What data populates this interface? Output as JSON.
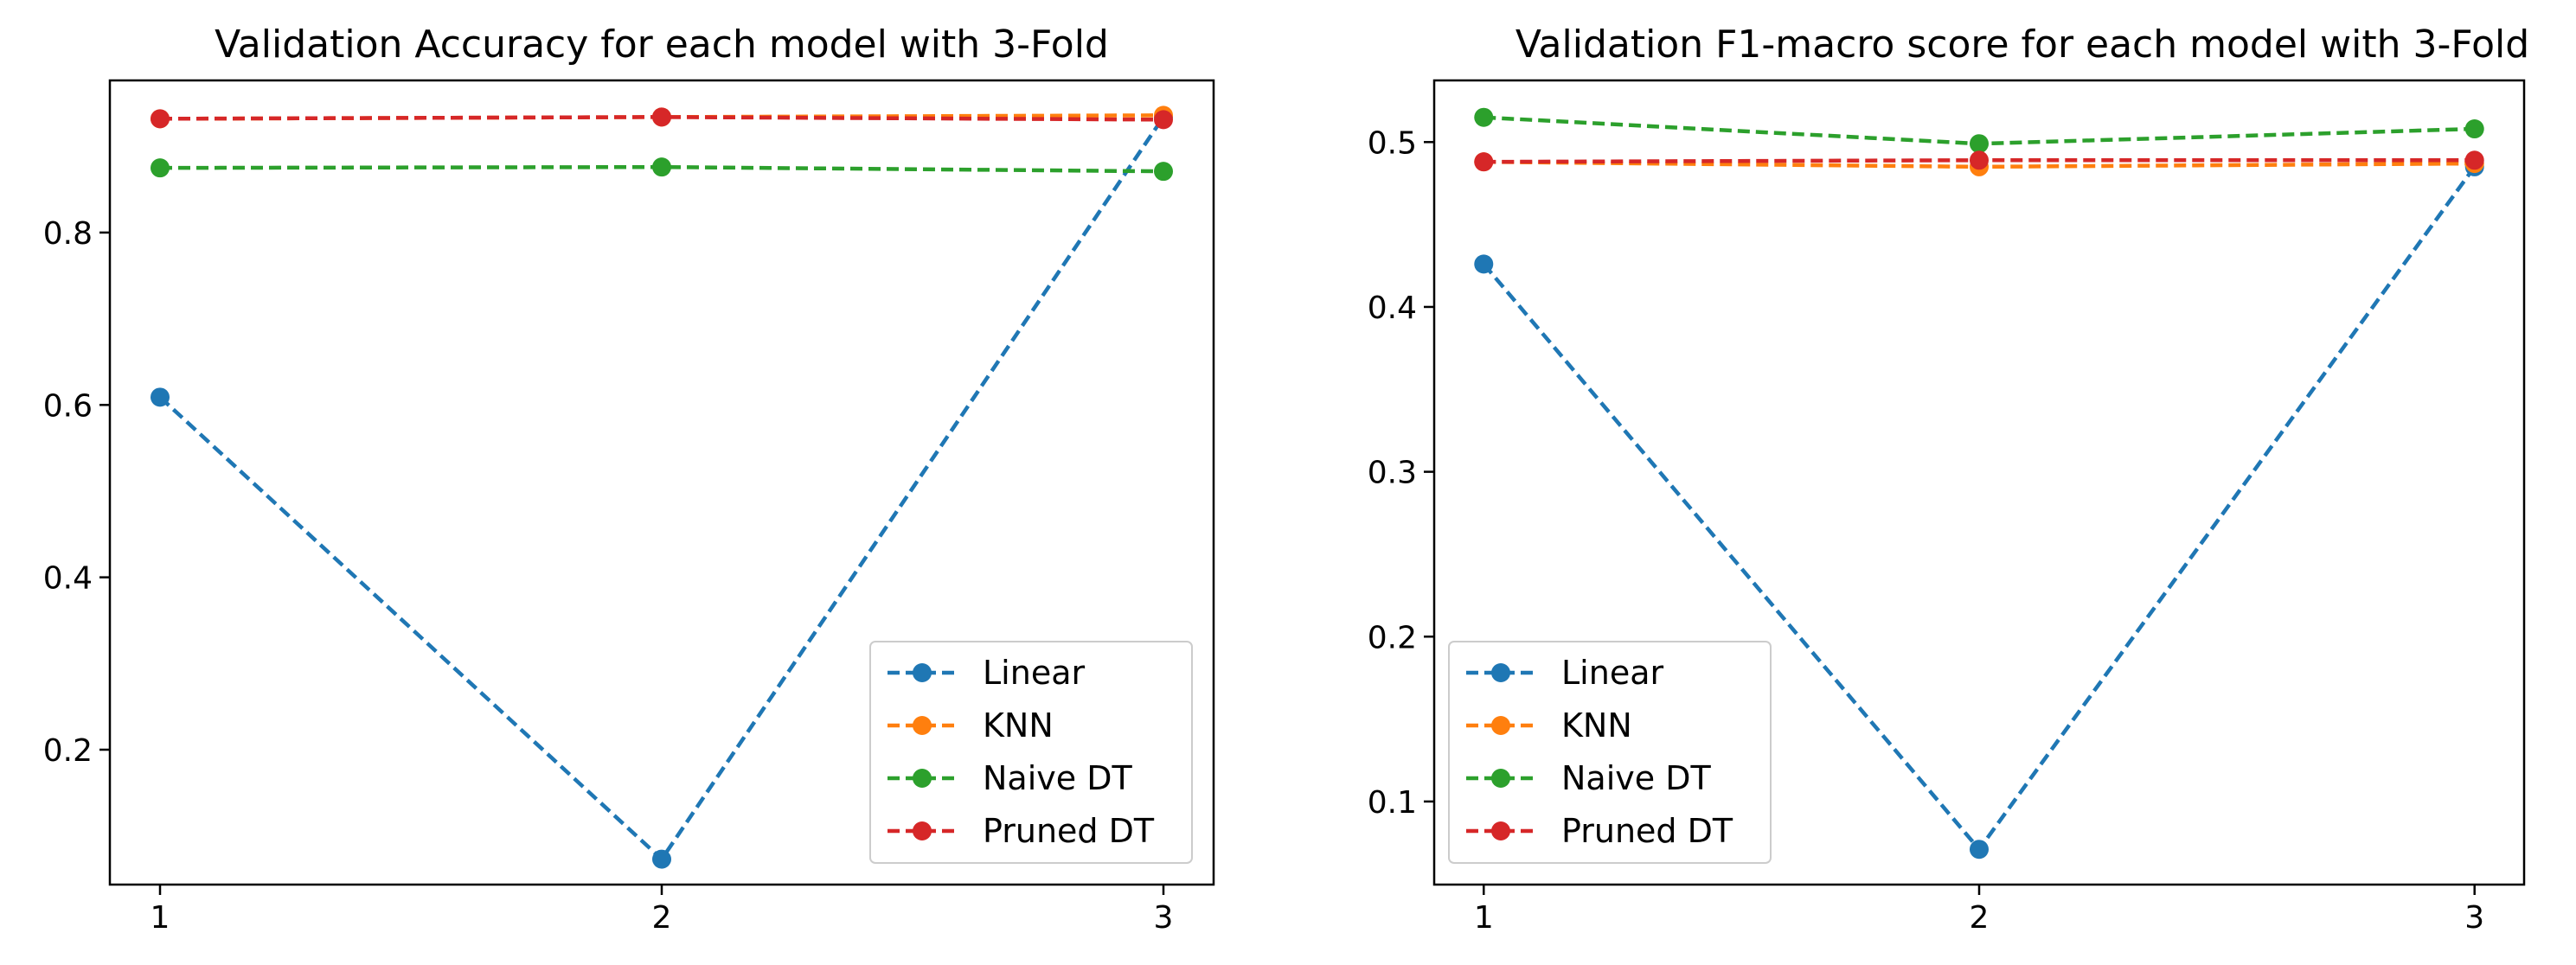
{
  "chart_data": [
    {
      "type": "line",
      "title": "Validation Accuracy for each model with 3-Fold",
      "xlabel": "",
      "ylabel": "",
      "x": [
        1,
        2,
        3
      ],
      "x_tick_labels": [
        "1",
        "2",
        "3"
      ],
      "xlim": [
        0.9,
        3.1
      ],
      "ylim": [
        0.0435,
        0.9765
      ],
      "y_ticks": [
        0.2,
        0.4,
        0.6,
        0.8
      ],
      "y_tick_labels": [
        "0.2",
        "0.4",
        "0.6",
        "0.8"
      ],
      "grid": false,
      "legend_position": "lower-right",
      "line_style": "dashed",
      "marker": "circle",
      "series": [
        {
          "name": "Linear",
          "color": "#1f77b4",
          "values": [
            0.609,
            0.073,
            0.934
          ]
        },
        {
          "name": "KNN",
          "color": "#ff7f0e",
          "values": [
            0.932,
            0.934,
            0.936
          ]
        },
        {
          "name": "Naive DT",
          "color": "#2ca02c",
          "values": [
            0.875,
            0.876,
            0.871
          ]
        },
        {
          "name": "Pruned DT",
          "color": "#d62728",
          "values": [
            0.932,
            0.934,
            0.931
          ]
        }
      ]
    },
    {
      "type": "line",
      "title": "Validation F1-macro score for each model with 3-Fold",
      "xlabel": "",
      "ylabel": "",
      "x": [
        1,
        2,
        3
      ],
      "x_tick_labels": [
        "1",
        "2",
        "3"
      ],
      "xlim": [
        0.9,
        3.1
      ],
      "ylim": [
        0.0496,
        0.5374
      ],
      "y_ticks": [
        0.1,
        0.2,
        0.3,
        0.4,
        0.5
      ],
      "y_tick_labels": [
        "0.1",
        "0.2",
        "0.3",
        "0.4",
        "0.5"
      ],
      "grid": false,
      "legend_position": "lower-left",
      "line_style": "dashed",
      "marker": "circle",
      "series": [
        {
          "name": "Linear",
          "color": "#1f77b4",
          "values": [
            0.426,
            0.071,
            0.485
          ]
        },
        {
          "name": "KNN",
          "color": "#ff7f0e",
          "values": [
            0.488,
            0.485,
            0.487
          ]
        },
        {
          "name": "Naive DT",
          "color": "#2ca02c",
          "values": [
            0.515,
            0.499,
            0.508
          ]
        },
        {
          "name": "Pruned DT",
          "color": "#d62728",
          "values": [
            0.488,
            0.489,
            0.489
          ]
        }
      ]
    }
  ]
}
